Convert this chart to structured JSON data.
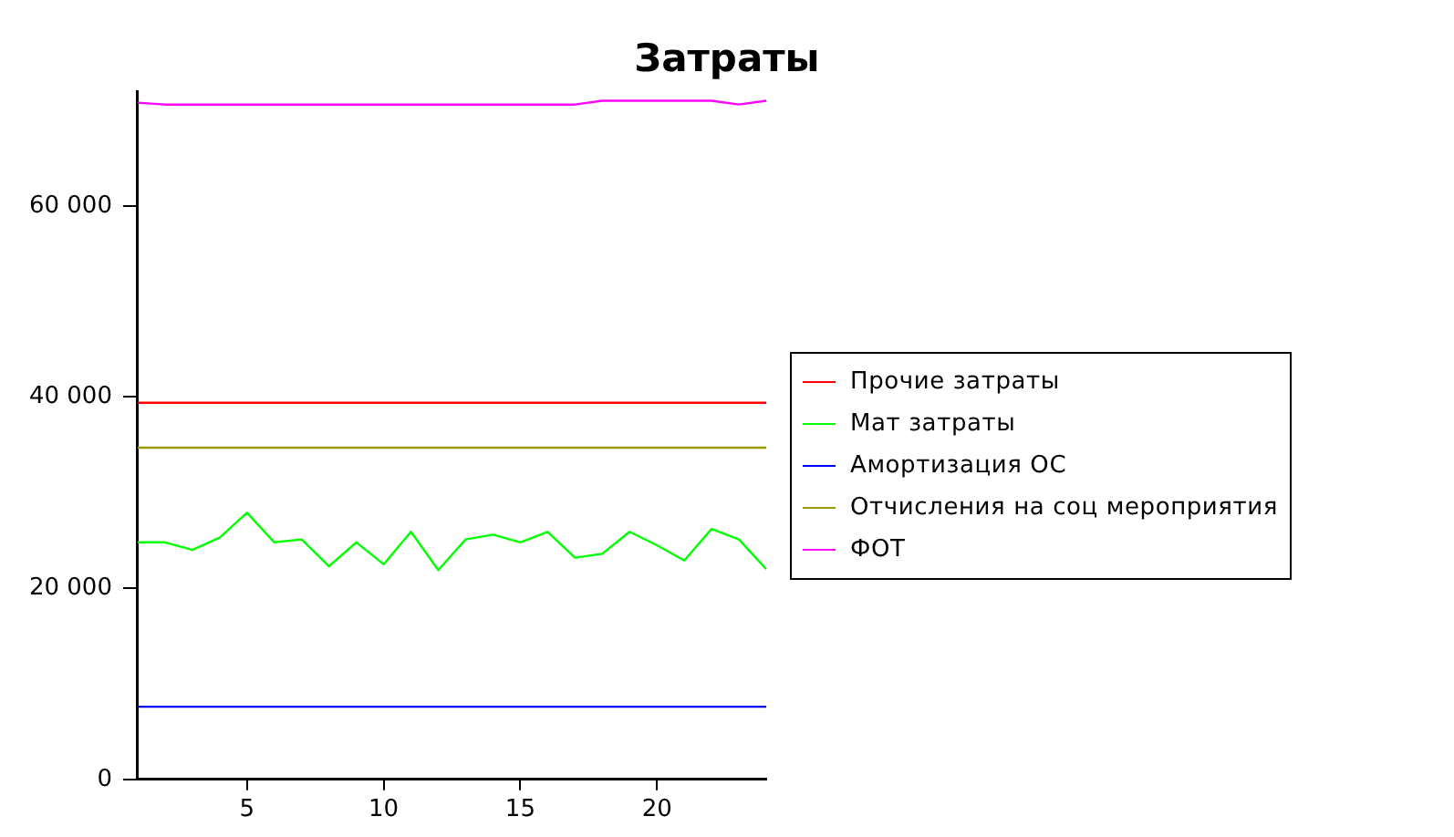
{
  "chart_data": {
    "type": "line",
    "title": "Затраты",
    "x": [
      1,
      2,
      3,
      4,
      5,
      6,
      7,
      8,
      9,
      10,
      11,
      12,
      13,
      14,
      15,
      16,
      17,
      18,
      19,
      20,
      21,
      22,
      23,
      24
    ],
    "series": [
      {
        "name": "Прочие затраты",
        "color": "#ff0000",
        "values": [
          39400,
          39400,
          39400,
          39400,
          39400,
          39400,
          39400,
          39400,
          39400,
          39400,
          39400,
          39400,
          39400,
          39400,
          39400,
          39400,
          39400,
          39400,
          39400,
          39400,
          39400,
          39400,
          39400,
          39400
        ]
      },
      {
        "name": "Мат затраты",
        "color": "#00ff00",
        "values": [
          24800,
          24800,
          24000,
          25300,
          27900,
          24800,
          25100,
          22300,
          24800,
          22500,
          25900,
          21900,
          25100,
          25600,
          24800,
          25900,
          23200,
          23600,
          25900,
          24500,
          22900,
          26200,
          25100,
          22000
        ]
      },
      {
        "name": "Амортизация ОС",
        "color": "#0000ff",
        "values": [
          7600,
          7600,
          7600,
          7600,
          7600,
          7600,
          7600,
          7600,
          7600,
          7600,
          7600,
          7600,
          7600,
          7600,
          7600,
          7600,
          7600,
          7600,
          7600,
          7600,
          7600,
          7600,
          7600,
          7600
        ]
      },
      {
        "name": "Отчисления на соц мероприятия",
        "color": "#999900",
        "values": [
          34700,
          34700,
          34700,
          34700,
          34700,
          34700,
          34700,
          34700,
          34700,
          34700,
          34700,
          34700,
          34700,
          34700,
          34700,
          34700,
          34700,
          34700,
          34700,
          34700,
          34700,
          34700,
          34700,
          34700
        ]
      },
      {
        "name": "ФОТ",
        "color": "#ff00ff",
        "values": [
          70800,
          70600,
          70600,
          70600,
          70600,
          70600,
          70600,
          70600,
          70600,
          70600,
          70600,
          70600,
          70600,
          70600,
          70600,
          70600,
          70600,
          71000,
          71000,
          71000,
          71000,
          71000,
          70600,
          71000
        ]
      }
    ],
    "xlim": [
      1,
      24
    ],
    "xticks": [
      5,
      10,
      15,
      20
    ],
    "ylim": [
      0,
      72000
    ],
    "yticks": [
      {
        "value": 0,
        "label": "0"
      },
      {
        "value": 20000,
        "label": "20 000"
      },
      {
        "value": 40000,
        "label": "40 000"
      },
      {
        "value": 60000,
        "label": "60 000"
      }
    ],
    "grid": false,
    "legend": "right",
    "marker": "none",
    "line_style": "solid"
  }
}
